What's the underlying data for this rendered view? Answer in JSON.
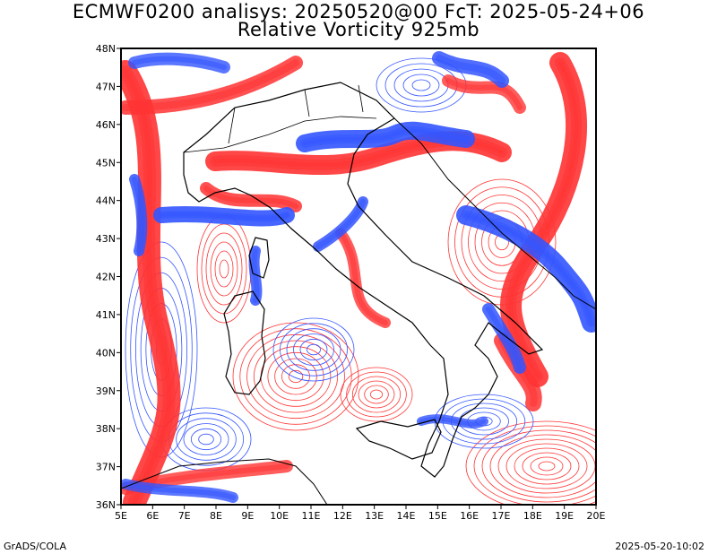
{
  "header": {
    "title_line1": "ECMWF0200 analisys: 20250520@00 FcT: 2025-05-24+06",
    "title_line2": "Relative Vorticity 925mb"
  },
  "map": {
    "lon_labels": [
      "5E",
      "6E",
      "7E",
      "8E",
      "9E",
      "10E",
      "11E",
      "12E",
      "13E",
      "14E",
      "15E",
      "16E",
      "17E",
      "18E",
      "19E",
      "20E"
    ],
    "lat_labels": [
      "36N",
      "37N",
      "38N",
      "39N",
      "40N",
      "41N",
      "42N",
      "43N",
      "44N",
      "45N",
      "46N",
      "47N",
      "48N"
    ],
    "lon_range": [
      5,
      20
    ],
    "lat_range": [
      36,
      48
    ],
    "colors": {
      "positive": "#ff3333",
      "negative": "#3355ff",
      "coast": "#000000",
      "background": "#ffffff"
    }
  },
  "footer": {
    "left": "GrADS/COLA",
    "right": "2025-05-20-10:02"
  }
}
